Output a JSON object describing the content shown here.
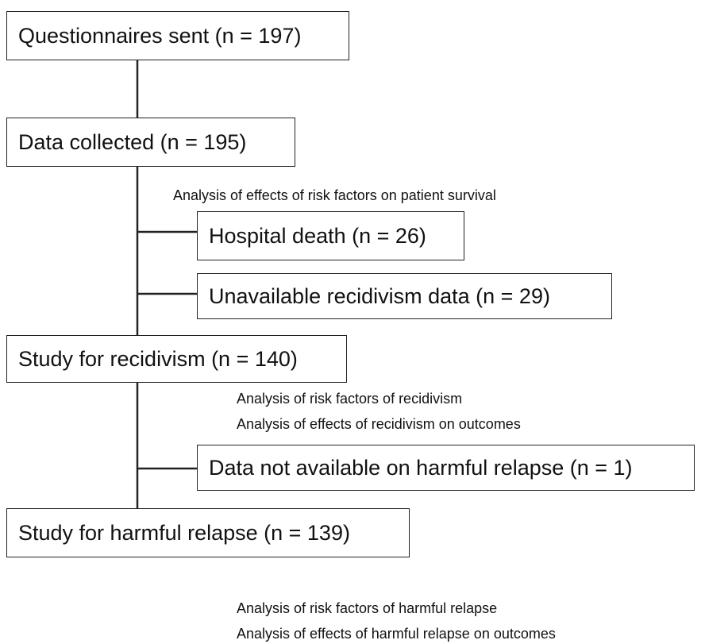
{
  "nodes": [
    {
      "label": "Questionnaires sent (n = 197)"
    },
    {
      "label": "Data collected  (n = 195)"
    },
    {
      "label": "Hospital death  (n = 26)"
    },
    {
      "label": "Unavailable recidivism data (n = 29)"
    },
    {
      "label": "Study for recidivism (n = 140)"
    },
    {
      "label": "Data not available on harmful relapse (n = 1)"
    },
    {
      "label": "Study for harmful relapse (n = 139)"
    }
  ],
  "notes": [
    "Analysis of effects of risk factors on patient survival",
    "Analysis of risk factors of recidivism",
    "Analysis of effects of recidivism on outcomes",
    "Analysis of risk factors of harmful relapse",
    "Analysis of effects of harmful relapse on outcomes"
  ]
}
